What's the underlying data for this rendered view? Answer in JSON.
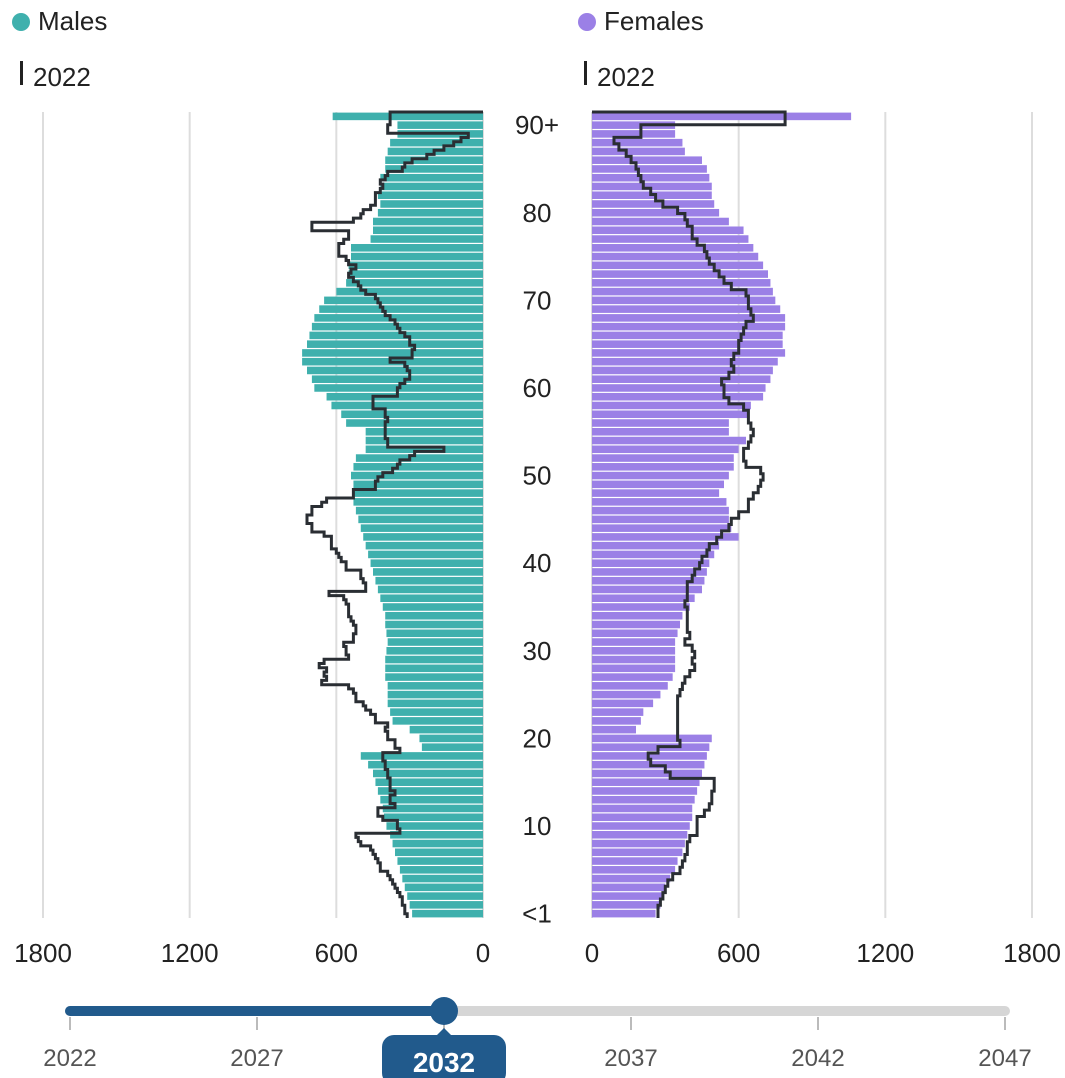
{
  "legend": {
    "males_label": "Males",
    "females_label": "Females",
    "reference_label_left": "2022",
    "reference_label_right": "2022"
  },
  "colors": {
    "males": "#3fb0ad",
    "females": "#9b80e6",
    "outline": "#2a2e33",
    "gridline": "#dddddd",
    "slider_active": "#215a8c",
    "slider_track": "#d6d6d6"
  },
  "timeline": {
    "years": [
      "2022",
      "2027",
      "2032",
      "2037",
      "2042",
      "2047"
    ],
    "selected_year": "2032",
    "selected_index": 2
  },
  "chart_data": {
    "type": "bar",
    "subtype": "population-pyramid",
    "ylabels": [
      "<1",
      "10",
      "20",
      "30",
      "40",
      "50",
      "60",
      "70",
      "80",
      "90+"
    ],
    "age_tick_values": [
      0,
      10,
      20,
      30,
      40,
      50,
      60,
      70,
      80,
      90
    ],
    "xlim": [
      0,
      1800
    ],
    "xticks": [
      1800,
      1200,
      600,
      0
    ],
    "xticks_right": [
      0,
      600,
      1200,
      1800
    ],
    "series": [
      {
        "name": "Males",
        "year": "2032",
        "values": [
          290,
          300,
          310,
          320,
          330,
          340,
          350,
          360,
          370,
          380,
          395,
          405,
          410,
          420,
          430,
          440,
          450,
          470,
          500,
          250,
          260,
          300,
          370,
          380,
          390,
          390,
          390,
          400,
          400,
          400,
          395,
          390,
          395,
          400,
          400,
          410,
          420,
          430,
          440,
          450,
          460,
          470,
          480,
          490,
          500,
          510,
          520,
          530,
          530,
          530,
          540,
          530,
          520,
          480,
          480,
          480,
          560,
          580,
          620,
          640,
          690,
          700,
          720,
          740,
          740,
          720,
          710,
          700,
          690,
          670,
          650,
          600,
          560,
          550,
          550,
          540,
          540,
          460,
          450,
          450,
          430,
          420,
          430,
          420,
          420,
          400,
          400,
          390,
          380,
          350,
          350,
          615
        ]
      },
      {
        "name": "Females",
        "year": "2032",
        "values": [
          260,
          280,
          290,
          300,
          320,
          340,
          350,
          370,
          380,
          390,
          400,
          410,
          410,
          420,
          430,
          440,
          450,
          460,
          470,
          480,
          490,
          180,
          200,
          210,
          250,
          280,
          310,
          330,
          340,
          340,
          340,
          340,
          350,
          360,
          370,
          400,
          420,
          450,
          460,
          470,
          480,
          500,
          520,
          600,
          570,
          560,
          560,
          550,
          520,
          540,
          560,
          580,
          580,
          600,
          630,
          560,
          560,
          640,
          650,
          700,
          710,
          730,
          740,
          760,
          790,
          780,
          780,
          790,
          790,
          770,
          750,
          740,
          730,
          720,
          700,
          680,
          660,
          640,
          620,
          560,
          520,
          500,
          490,
          490,
          480,
          470,
          450,
          380,
          370,
          340,
          340,
          1060
        ]
      }
    ],
    "reference": [
      {
        "name": "Males 2022",
        "values": [
          310,
          320,
          320,
          330,
          330,
          340,
          350,
          360,
          370,
          380,
          390,
          420,
          420,
          430,
          440,
          450,
          460,
          500,
          510,
          520,
          340,
          350,
          350,
          410,
          430,
          430,
          360,
          380,
          380,
          360,
          380,
          380,
          380,
          390,
          390,
          400,
          400,
          410,
          410,
          340,
          360,
          360,
          390,
          390,
          400,
          390,
          440,
          440,
          460,
          480,
          490,
          520,
          520,
          530,
          550,
          660,
          640,
          650,
          640,
          670,
          650,
          550,
          560,
          560,
          570,
          530,
          530,
          520,
          520,
          530,
          540,
          550,
          550,
          550,
          560,
          570,
          630,
          480,
          480,
          490,
          500,
          500,
          560,
          560,
          580,
          590,
          600,
          620,
          620,
          620,
          650,
          700,
          700,
          720,
          720,
          700,
          700,
          660,
          640,
          530,
          530,
          440,
          440,
          430,
          410,
          370,
          350,
          340,
          300,
          280,
          160,
          390,
          390,
          400,
          400,
          400,
          400,
          390,
          400,
          400,
          450,
          450,
          450,
          350,
          350,
          340,
          320,
          300,
          300,
          310,
          320,
          380,
          290,
          290,
          280,
          300,
          300,
          320,
          340,
          350,
          360,
          380,
          400,
          410,
          420,
          430,
          440,
          480,
          500,
          510,
          530,
          550,
          540,
          520,
          550,
          560,
          590,
          590,
          590,
          570,
          550,
          550,
          700,
          700,
          530,
          500,
          490,
          460,
          440,
          440,
          440,
          420,
          410,
          420,
          400,
          390,
          330,
          320,
          290,
          230,
          200,
          160,
          120,
          90,
          60,
          390,
          390,
          380,
          380,
          380
        ]
      },
      {
        "name": "Females 2022",
        "values": [
          270,
          270,
          280,
          290,
          300,
          310,
          330,
          360,
          370,
          380,
          390,
          390,
          400,
          430,
          430,
          430,
          460,
          480,
          490,
          490,
          500,
          500,
          320,
          300,
          240,
          230,
          270,
          360,
          350,
          350,
          350,
          350,
          350,
          350,
          350,
          360,
          370,
          380,
          400,
          420,
          410,
          420,
          410,
          380,
          400,
          390,
          390,
          390,
          390,
          380,
          390,
          390,
          390,
          410,
          420,
          440,
          450,
          470,
          480,
          510,
          530,
          560,
          570,
          600,
          640,
          640,
          660,
          680,
          690,
          700,
          690,
          630,
          620,
          620,
          640,
          650,
          660,
          650,
          640,
          640,
          620,
          560,
          540,
          540,
          530,
          560,
          580,
          570,
          580,
          600,
          600,
          610,
          620,
          630,
          660,
          650,
          640,
          640,
          630,
          570,
          540,
          520,
          500,
          480,
          470,
          460,
          430,
          410,
          410,
          390,
          380,
          350,
          290,
          260,
          240,
          210,
          200,
          190,
          180,
          160,
          140,
          110,
          90,
          200,
          200,
          790,
          790
        ]
      }
    ]
  }
}
